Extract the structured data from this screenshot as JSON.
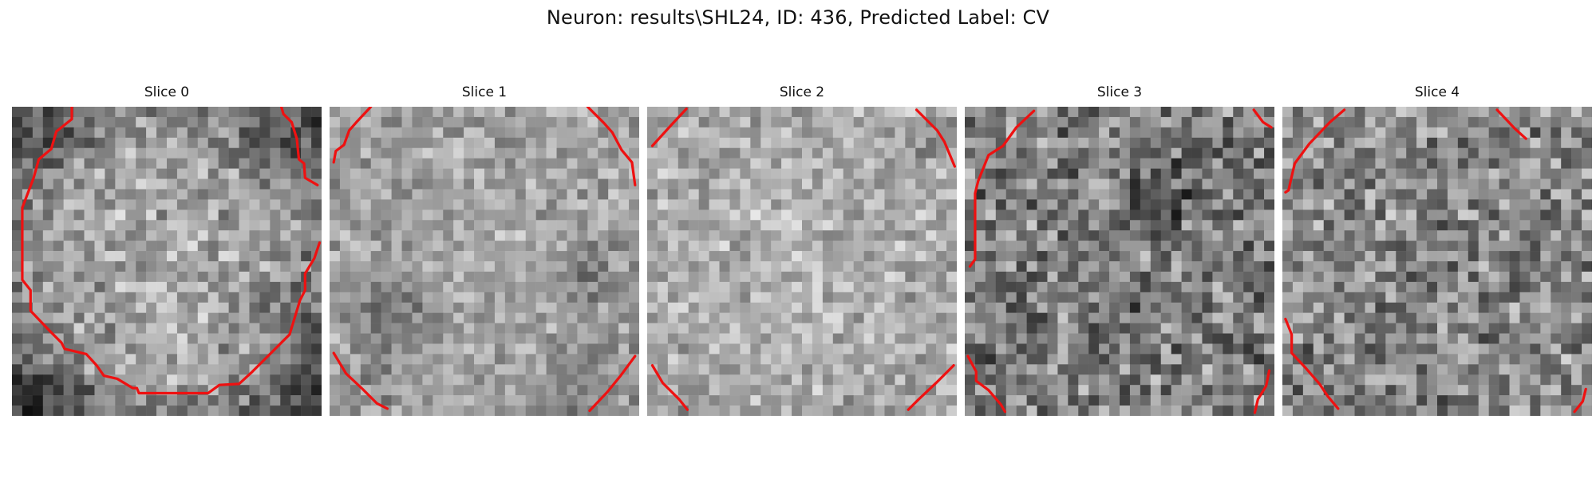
{
  "figure": {
    "title": "Neuron: results\\SHL24, ID: 436, Predicted Label: CV"
  },
  "panels": [
    {
      "title": "Slice 0"
    },
    {
      "title": "Slice 1"
    },
    {
      "title": "Slice 2"
    },
    {
      "title": "Slice 3"
    },
    {
      "title": "Slice 4"
    }
  ],
  "colors": {
    "background": "#ffffff",
    "contour": "#ee1111",
    "colormap": "gray"
  }
}
